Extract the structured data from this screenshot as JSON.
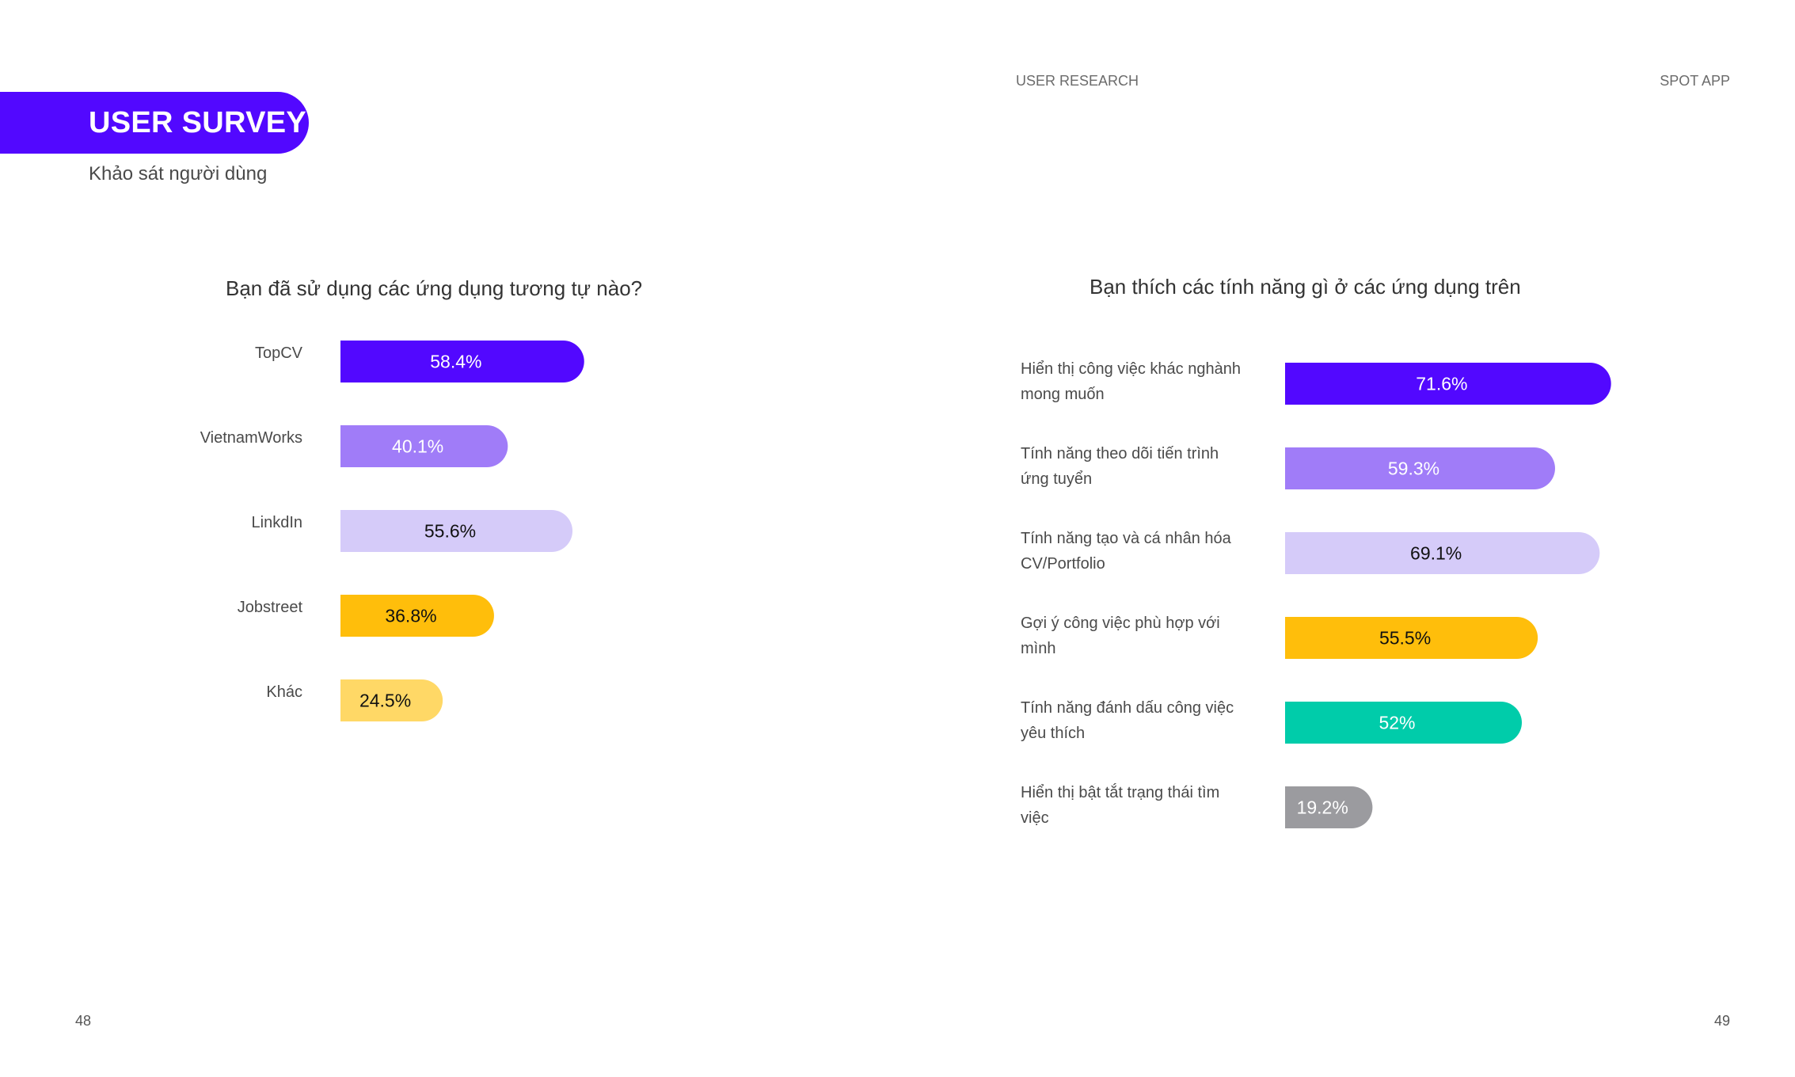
{
  "header": {
    "title": "USER SURVEY",
    "subtitle": "Khảo sát người dùng",
    "section_label": "USER RESEARCH",
    "app_label": "SPOT APP",
    "accent_color": "#5208FF"
  },
  "pages": {
    "left": "48",
    "right": "49"
  },
  "chart_data": [
    {
      "type": "bar",
      "orientation": "horizontal",
      "title": "Bạn đã sử dụng các ứng dụng tương tự nào?",
      "categories": [
        "TopCV",
        "VietnamWorks",
        "LinkdIn",
        "Jobstreet",
        "Khác"
      ],
      "values": [
        58.4,
        40.1,
        55.6,
        36.8,
        24.5
      ],
      "value_labels": [
        "58.4%",
        "40.1%",
        "55.6%",
        "36.8%",
        "24.5%"
      ],
      "colors": [
        "#5208FF",
        "#A07CF8",
        "#D5CBF9",
        "#FFBE0B",
        "#FFD866"
      ],
      "label_colors": [
        "#ffffff",
        "#ffffff",
        "#111111",
        "#111111",
        "#111111"
      ],
      "xlim": [
        0,
        100
      ],
      "grid": false
    },
    {
      "type": "bar",
      "orientation": "horizontal",
      "title": "Bạn thích các tính năng gì ở các ứng dụng trên",
      "categories": [
        [
          "Hiển thị công việc khác nghành",
          "mong muốn"
        ],
        [
          "Tính năng theo dõi tiến trình",
          "ứng tuyển"
        ],
        [
          "Tính năng tạo và cá nhân hóa",
          "CV/Portfolio"
        ],
        [
          "Gợi ý công việc phù hợp với",
          "mình"
        ],
        [
          "Tính năng đánh dấu công việc",
          "yêu thích"
        ],
        [
          "Hiển thị bật tắt trạng thái tìm",
          "việc"
        ]
      ],
      "values": [
        71.6,
        59.3,
        69.1,
        55.5,
        52,
        19.2
      ],
      "value_labels": [
        "71.6%",
        "59.3%",
        "69.1%",
        "55.5%",
        "52%",
        "19.2%"
      ],
      "colors": [
        "#5208FF",
        "#A07CF8",
        "#D5CBF9",
        "#FFBE0B",
        "#00CCAA",
        "#9B9B9F"
      ],
      "label_colors": [
        "#ffffff",
        "#ffffff",
        "#111111",
        "#111111",
        "#ffffff",
        "#ffffff"
      ],
      "xlim": [
        0,
        100
      ],
      "grid": false
    }
  ]
}
